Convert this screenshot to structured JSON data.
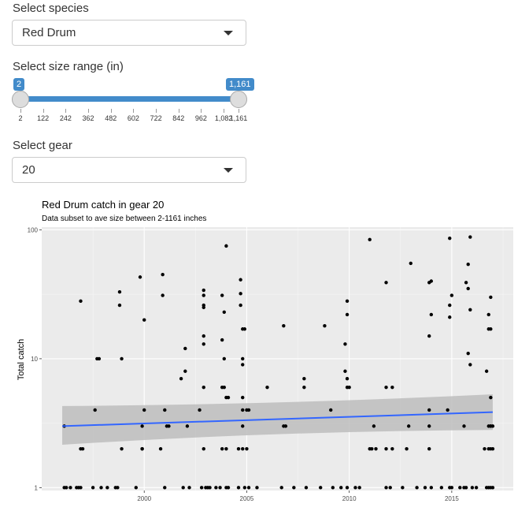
{
  "species": {
    "label": "Select species",
    "value": "Red Drum"
  },
  "size": {
    "label": "Select size range (in)",
    "min_value": "2",
    "max_value": "1,161",
    "ticks": [
      "2",
      "122",
      "242",
      "362",
      "482",
      "602",
      "722",
      "842",
      "962",
      "1,082",
      "1,161"
    ]
  },
  "gear": {
    "label": "Select gear",
    "value": "20"
  },
  "colors": {
    "accent": "#428bca",
    "panel": "#ebebeb",
    "line": "#3366ff",
    "ribbon": "#bdbdbd"
  },
  "chart_data": {
    "type": "scatter",
    "title": "Red Drum catch in gear 20",
    "subtitle": "Data subset to ave size between 2-1161 inches",
    "xlabel": "",
    "ylabel": "Total catch",
    "y_scale": "log10",
    "xlim": [
      1995.0,
      2018.0
    ],
    "ylim": [
      0.95,
      105
    ],
    "x_ticks": [
      2000,
      2005,
      2010,
      2015
    ],
    "y_ticks": [
      1,
      10,
      100
    ],
    "y_tick_labels": [
      "1",
      "10",
      "100"
    ],
    "grid": true,
    "trend": {
      "method": "lm",
      "x": [
        1996.0,
        2017.0
      ],
      "y": [
        3.0,
        3.85
      ],
      "ci_lower": [
        2.15,
        2.8
      ],
      "ci_upper": [
        4.3,
        5.3
      ]
    },
    "points": [
      [
        1996.1,
        3
      ],
      [
        1996.1,
        1
      ],
      [
        1996.2,
        1
      ],
      [
        1996.4,
        1
      ],
      [
        1996.7,
        1
      ],
      [
        1996.8,
        1
      ],
      [
        1996.9,
        1
      ],
      [
        1996.9,
        28
      ],
      [
        1996.9,
        2
      ],
      [
        1997.0,
        2
      ],
      [
        1997.5,
        1
      ],
      [
        1997.6,
        4
      ],
      [
        1997.7,
        10
      ],
      [
        1997.8,
        10
      ],
      [
        1997.9,
        1
      ],
      [
        1998.2,
        1
      ],
      [
        1998.6,
        1
      ],
      [
        1998.7,
        1
      ],
      [
        1998.8,
        33
      ],
      [
        1998.8,
        26
      ],
      [
        1998.9,
        10
      ],
      [
        1998.9,
        2
      ],
      [
        1999.6,
        1
      ],
      [
        1999.9,
        2
      ],
      [
        1999.9,
        3
      ],
      [
        1999.9,
        2
      ],
      [
        1999.8,
        43
      ],
      [
        2000.0,
        20
      ],
      [
        2000.0,
        4
      ],
      [
        2000.8,
        2
      ],
      [
        2000.9,
        31
      ],
      [
        2000.9,
        45
      ],
      [
        2001.0,
        1
      ],
      [
        2001.0,
        4
      ],
      [
        2001.1,
        3
      ],
      [
        2001.2,
        3
      ],
      [
        2001.8,
        7
      ],
      [
        2001.9,
        1
      ],
      [
        2002.0,
        12
      ],
      [
        2002.0,
        8
      ],
      [
        2002.1,
        3
      ],
      [
        2002.2,
        1
      ],
      [
        2002.7,
        4
      ],
      [
        2002.8,
        1
      ],
      [
        2002.9,
        34
      ],
      [
        2002.9,
        31
      ],
      [
        2002.9,
        25
      ],
      [
        2002.9,
        26
      ],
      [
        2002.9,
        15
      ],
      [
        2002.9,
        13
      ],
      [
        2002.9,
        6
      ],
      [
        2002.9,
        2
      ],
      [
        2003.0,
        1
      ],
      [
        2003.1,
        1
      ],
      [
        2003.2,
        1
      ],
      [
        2003.5,
        1
      ],
      [
        2003.7,
        1
      ],
      [
        2003.8,
        31
      ],
      [
        2003.8,
        14
      ],
      [
        2003.8,
        6
      ],
      [
        2003.8,
        2
      ],
      [
        2003.9,
        23
      ],
      [
        2003.9,
        10
      ],
      [
        2003.9,
        6
      ],
      [
        2004.0,
        75
      ],
      [
        2004.0,
        5
      ],
      [
        2004.0,
        2
      ],
      [
        2004.0,
        1
      ],
      [
        2004.1,
        5
      ],
      [
        2004.1,
        1
      ],
      [
        2004.6,
        1
      ],
      [
        2004.6,
        2
      ],
      [
        2004.7,
        41
      ],
      [
        2004.7,
        32
      ],
      [
        2004.7,
        26
      ],
      [
        2004.8,
        17
      ],
      [
        2004.8,
        9
      ],
      [
        2004.8,
        10
      ],
      [
        2004.8,
        5
      ],
      [
        2004.8,
        3
      ],
      [
        2004.8,
        4
      ],
      [
        2004.8,
        2
      ],
      [
        2004.9,
        17
      ],
      [
        2004.9,
        1
      ],
      [
        2005.0,
        4
      ],
      [
        2005.0,
        2
      ],
      [
        2005.1,
        4
      ],
      [
        2005.1,
        1
      ],
      [
        2005.5,
        1
      ],
      [
        2006.0,
        6
      ],
      [
        2006.7,
        1
      ],
      [
        2006.8,
        3
      ],
      [
        2006.8,
        18
      ],
      [
        2006.9,
        3
      ],
      [
        2007.3,
        1
      ],
      [
        2007.8,
        7
      ],
      [
        2007.8,
        6
      ],
      [
        2007.9,
        1
      ],
      [
        2008.6,
        1
      ],
      [
        2008.8,
        18
      ],
      [
        2009.1,
        4
      ],
      [
        2009.2,
        1
      ],
      [
        2009.6,
        1
      ],
      [
        2009.8,
        13
      ],
      [
        2009.8,
        8
      ],
      [
        2009.9,
        28
      ],
      [
        2009.9,
        22
      ],
      [
        2009.9,
        7
      ],
      [
        2009.9,
        6
      ],
      [
        2009.9,
        1
      ],
      [
        2010.0,
        6
      ],
      [
        2010.3,
        1
      ],
      [
        2010.5,
        1
      ],
      [
        2011.0,
        84
      ],
      [
        2011.0,
        2
      ],
      [
        2011.1,
        2
      ],
      [
        2011.2,
        3
      ],
      [
        2011.3,
        2
      ],
      [
        2011.8,
        1
      ],
      [
        2011.8,
        6
      ],
      [
        2011.8,
        39
      ],
      [
        2011.8,
        2
      ],
      [
        2012.0,
        1
      ],
      [
        2012.1,
        6
      ],
      [
        2012.1,
        2
      ],
      [
        2012.6,
        1
      ],
      [
        2012.8,
        2
      ],
      [
        2012.9,
        3
      ],
      [
        2013.0,
        55
      ],
      [
        2013.3,
        1
      ],
      [
        2013.7,
        1
      ],
      [
        2013.9,
        4
      ],
      [
        2013.9,
        3
      ],
      [
        2013.9,
        15
      ],
      [
        2013.9,
        2
      ],
      [
        2013.9,
        39
      ],
      [
        2014.0,
        40
      ],
      [
        2014.0,
        22
      ],
      [
        2014.0,
        1
      ],
      [
        2014.5,
        1
      ],
      [
        2014.8,
        4
      ],
      [
        2014.9,
        1
      ],
      [
        2014.9,
        26
      ],
      [
        2014.9,
        86
      ],
      [
        2014.9,
        21
      ],
      [
        2015.0,
        31
      ],
      [
        2015.0,
        1
      ],
      [
        2015.4,
        1
      ],
      [
        2015.6,
        3
      ],
      [
        2015.6,
        1
      ],
      [
        2015.7,
        1
      ],
      [
        2015.7,
        39
      ],
      [
        2015.8,
        11
      ],
      [
        2015.8,
        35
      ],
      [
        2015.8,
        54
      ],
      [
        2015.9,
        88
      ],
      [
        2015.9,
        9
      ],
      [
        2015.9,
        24
      ],
      [
        2016.0,
        1
      ],
      [
        2016.2,
        1
      ],
      [
        2016.6,
        2
      ],
      [
        2016.7,
        1
      ],
      [
        2016.7,
        8
      ],
      [
        2016.8,
        3
      ],
      [
        2016.8,
        2
      ],
      [
        2016.8,
        1
      ],
      [
        2016.8,
        22
      ],
      [
        2016.8,
        17
      ],
      [
        2016.9,
        17
      ],
      [
        2016.9,
        5
      ],
      [
        2016.9,
        3
      ],
      [
        2016.9,
        30
      ],
      [
        2016.9,
        3
      ],
      [
        2016.9,
        2
      ],
      [
        2016.9,
        1
      ],
      [
        2017.0,
        3
      ],
      [
        2017.0,
        2
      ],
      [
        2017.0,
        1
      ]
    ]
  }
}
